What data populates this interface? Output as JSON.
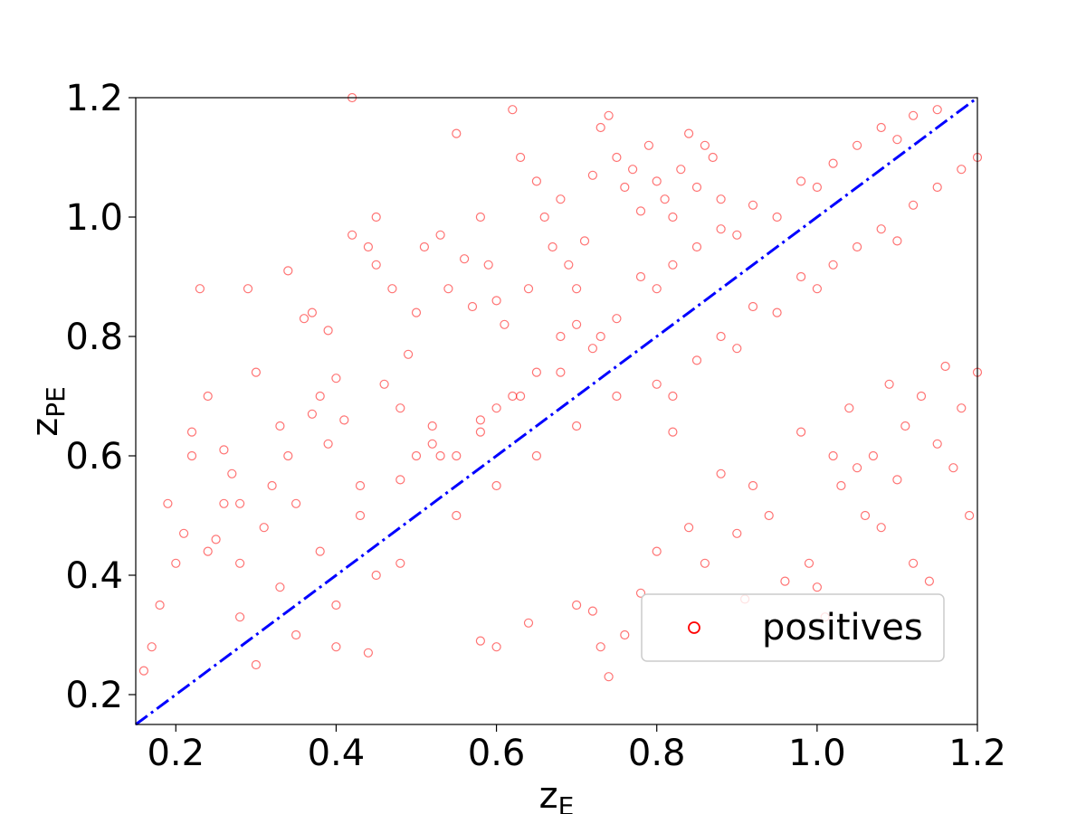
{
  "chart_data": {
    "type": "scatter",
    "title": "",
    "xlabel": "z",
    "xlabel_sub": "E",
    "ylabel": "z",
    "ylabel_sub": "PE",
    "xlim": [
      0.15,
      1.2
    ],
    "ylim": [
      0.15,
      1.2
    ],
    "xticks": [
      0.2,
      0.4,
      0.6,
      0.8,
      1.0,
      1.2
    ],
    "yticks": [
      0.2,
      0.4,
      0.6,
      0.8,
      1.0,
      1.2
    ],
    "xtick_labels": [
      "0.2",
      "0.4",
      "0.6",
      "0.8",
      "1.0",
      "1.2"
    ],
    "ytick_labels": [
      "0.2",
      "0.4",
      "0.6",
      "0.8",
      "1.0",
      "1.2"
    ],
    "grid": false,
    "legend": {
      "placement": "lower-right",
      "entries": [
        "positives"
      ]
    },
    "series": [
      {
        "name": "positives",
        "marker": "open-circle",
        "color": "#ff0000",
        "points": [
          [
            0.16,
            0.24
          ],
          [
            0.17,
            0.28
          ],
          [
            0.18,
            0.35
          ],
          [
            0.19,
            0.52
          ],
          [
            0.2,
            0.42
          ],
          [
            0.21,
            0.47
          ],
          [
            0.22,
            0.64
          ],
          [
            0.22,
            0.6
          ],
          [
            0.23,
            0.88
          ],
          [
            0.24,
            0.7
          ],
          [
            0.24,
            0.44
          ],
          [
            0.25,
            0.46
          ],
          [
            0.26,
            0.52
          ],
          [
            0.26,
            0.61
          ],
          [
            0.27,
            0.57
          ],
          [
            0.28,
            0.52
          ],
          [
            0.28,
            0.42
          ],
          [
            0.29,
            0.88
          ],
          [
            0.3,
            0.74
          ],
          [
            0.31,
            0.48
          ],
          [
            0.32,
            0.55
          ],
          [
            0.33,
            0.65
          ],
          [
            0.34,
            0.91
          ],
          [
            0.34,
            0.6
          ],
          [
            0.35,
            0.52
          ],
          [
            0.36,
            0.83
          ],
          [
            0.37,
            0.84
          ],
          [
            0.37,
            0.67
          ],
          [
            0.38,
            0.7
          ],
          [
            0.39,
            0.81
          ],
          [
            0.39,
            0.62
          ],
          [
            0.4,
            0.73
          ],
          [
            0.41,
            0.66
          ],
          [
            0.42,
            0.97
          ],
          [
            0.42,
            1.2
          ],
          [
            0.43,
            0.55
          ],
          [
            0.44,
            0.95
          ],
          [
            0.45,
            1.0
          ],
          [
            0.45,
            0.92
          ],
          [
            0.46,
            0.72
          ],
          [
            0.47,
            0.88
          ],
          [
            0.48,
            0.68
          ],
          [
            0.49,
            0.77
          ],
          [
            0.5,
            0.84
          ],
          [
            0.51,
            0.95
          ],
          [
            0.52,
            0.65
          ],
          [
            0.53,
            0.97
          ],
          [
            0.54,
            0.88
          ],
          [
            0.55,
            1.14
          ],
          [
            0.56,
            0.93
          ],
          [
            0.57,
            0.85
          ],
          [
            0.58,
            1.0
          ],
          [
            0.59,
            0.92
          ],
          [
            0.6,
            0.86
          ],
          [
            0.61,
            0.82
          ],
          [
            0.62,
            1.18
          ],
          [
            0.63,
            1.1
          ],
          [
            0.64,
            0.88
          ],
          [
            0.65,
            1.06
          ],
          [
            0.66,
            1.0
          ],
          [
            0.67,
            0.95
          ],
          [
            0.68,
            1.03
          ],
          [
            0.69,
            0.92
          ],
          [
            0.7,
            0.88
          ],
          [
            0.71,
            0.96
          ],
          [
            0.72,
            1.07
          ],
          [
            0.73,
            1.15
          ],
          [
            0.74,
            1.17
          ],
          [
            0.75,
            1.1
          ],
          [
            0.76,
            1.05
          ],
          [
            0.77,
            1.08
          ],
          [
            0.78,
            1.01
          ],
          [
            0.79,
            1.12
          ],
          [
            0.8,
            1.06
          ],
          [
            0.81,
            1.03
          ],
          [
            0.82,
            1.0
          ],
          [
            0.83,
            1.08
          ],
          [
            0.84,
            1.14
          ],
          [
            0.85,
            1.05
          ],
          [
            0.86,
            1.12
          ],
          [
            0.87,
            1.1
          ],
          [
            0.88,
            1.03
          ],
          [
            0.4,
            0.28
          ],
          [
            0.44,
            0.27
          ],
          [
            0.58,
            0.29
          ],
          [
            0.6,
            0.28
          ],
          [
            0.64,
            0.32
          ],
          [
            0.7,
            0.35
          ],
          [
            0.72,
            0.34
          ],
          [
            0.73,
            0.28
          ],
          [
            0.74,
            0.23
          ],
          [
            0.76,
            0.3
          ],
          [
            0.78,
            0.37
          ],
          [
            0.8,
            0.44
          ],
          [
            0.82,
            0.64
          ],
          [
            0.84,
            0.48
          ],
          [
            0.86,
            0.42
          ],
          [
            0.88,
            0.57
          ],
          [
            0.9,
            0.47
          ],
          [
            0.91,
            0.36
          ],
          [
            0.92,
            0.55
          ],
          [
            0.94,
            0.5
          ],
          [
            0.96,
            0.39
          ],
          [
            0.98,
            0.64
          ],
          [
            0.99,
            0.42
          ],
          [
            1.0,
            0.38
          ],
          [
            1.01,
            0.33
          ],
          [
            1.02,
            0.6
          ],
          [
            1.03,
            0.55
          ],
          [
            1.04,
            0.68
          ],
          [
            1.05,
            0.58
          ],
          [
            1.06,
            0.5
          ],
          [
            1.07,
            0.6
          ],
          [
            1.08,
            0.48
          ],
          [
            1.09,
            0.72
          ],
          [
            1.1,
            0.56
          ],
          [
            1.11,
            0.65
          ],
          [
            1.12,
            0.42
          ],
          [
            1.13,
            0.7
          ],
          [
            1.14,
            0.39
          ],
          [
            1.15,
            0.62
          ],
          [
            1.16,
            0.75
          ],
          [
            1.17,
            0.58
          ],
          [
            1.18,
            0.68
          ],
          [
            1.19,
            0.5
          ],
          [
            1.2,
            0.74
          ],
          [
            0.5,
            0.6
          ],
          [
            0.52,
            0.62
          ],
          [
            0.55,
            0.6
          ],
          [
            0.58,
            0.66
          ],
          [
            0.6,
            0.68
          ],
          [
            0.62,
            0.7
          ],
          [
            0.65,
            0.74
          ],
          [
            0.68,
            0.8
          ],
          [
            0.7,
            0.82
          ],
          [
            0.72,
            0.78
          ],
          [
            0.75,
            0.83
          ],
          [
            0.78,
            0.9
          ],
          [
            0.8,
            0.88
          ],
          [
            0.82,
            0.92
          ],
          [
            0.85,
            0.95
          ],
          [
            0.88,
            0.98
          ],
          [
            0.9,
            0.97
          ],
          [
            0.92,
            1.02
          ],
          [
            0.95,
            1.0
          ],
          [
            0.98,
            1.06
          ],
          [
            1.0,
            1.05
          ],
          [
            1.02,
            1.09
          ],
          [
            1.05,
            1.12
          ],
          [
            1.08,
            1.15
          ],
          [
            1.1,
            1.13
          ],
          [
            1.12,
            1.17
          ],
          [
            1.15,
            1.18
          ],
          [
            0.8,
            0.72
          ],
          [
            0.82,
            0.7
          ],
          [
            0.85,
            0.76
          ],
          [
            0.88,
            0.8
          ],
          [
            0.9,
            0.78
          ],
          [
            0.92,
            0.85
          ],
          [
            0.95,
            0.84
          ],
          [
            0.98,
            0.9
          ],
          [
            1.0,
            0.88
          ],
          [
            1.02,
            0.92
          ],
          [
            1.05,
            0.95
          ],
          [
            1.08,
            0.98
          ],
          [
            1.1,
            0.96
          ],
          [
            1.12,
            1.02
          ],
          [
            1.15,
            1.05
          ],
          [
            1.18,
            1.08
          ],
          [
            1.2,
            1.1
          ],
          [
            0.45,
            0.4
          ],
          [
            0.48,
            0.42
          ],
          [
            0.55,
            0.5
          ],
          [
            0.6,
            0.55
          ],
          [
            0.65,
            0.6
          ],
          [
            0.7,
            0.65
          ],
          [
            0.75,
            0.7
          ],
          [
            0.3,
            0.25
          ],
          [
            0.35,
            0.3
          ],
          [
            0.4,
            0.35
          ],
          [
            0.28,
            0.33
          ],
          [
            0.33,
            0.38
          ],
          [
            0.38,
            0.44
          ],
          [
            0.43,
            0.5
          ],
          [
            0.48,
            0.56
          ],
          [
            0.53,
            0.6
          ],
          [
            0.58,
            0.64
          ],
          [
            0.63,
            0.7
          ],
          [
            0.68,
            0.74
          ],
          [
            0.73,
            0.8
          ]
        ]
      }
    ],
    "reference_line": {
      "style": "dash-dot",
      "color": "#0000ff",
      "from": [
        0.15,
        0.15
      ],
      "to": [
        1.2,
        1.2
      ]
    }
  }
}
